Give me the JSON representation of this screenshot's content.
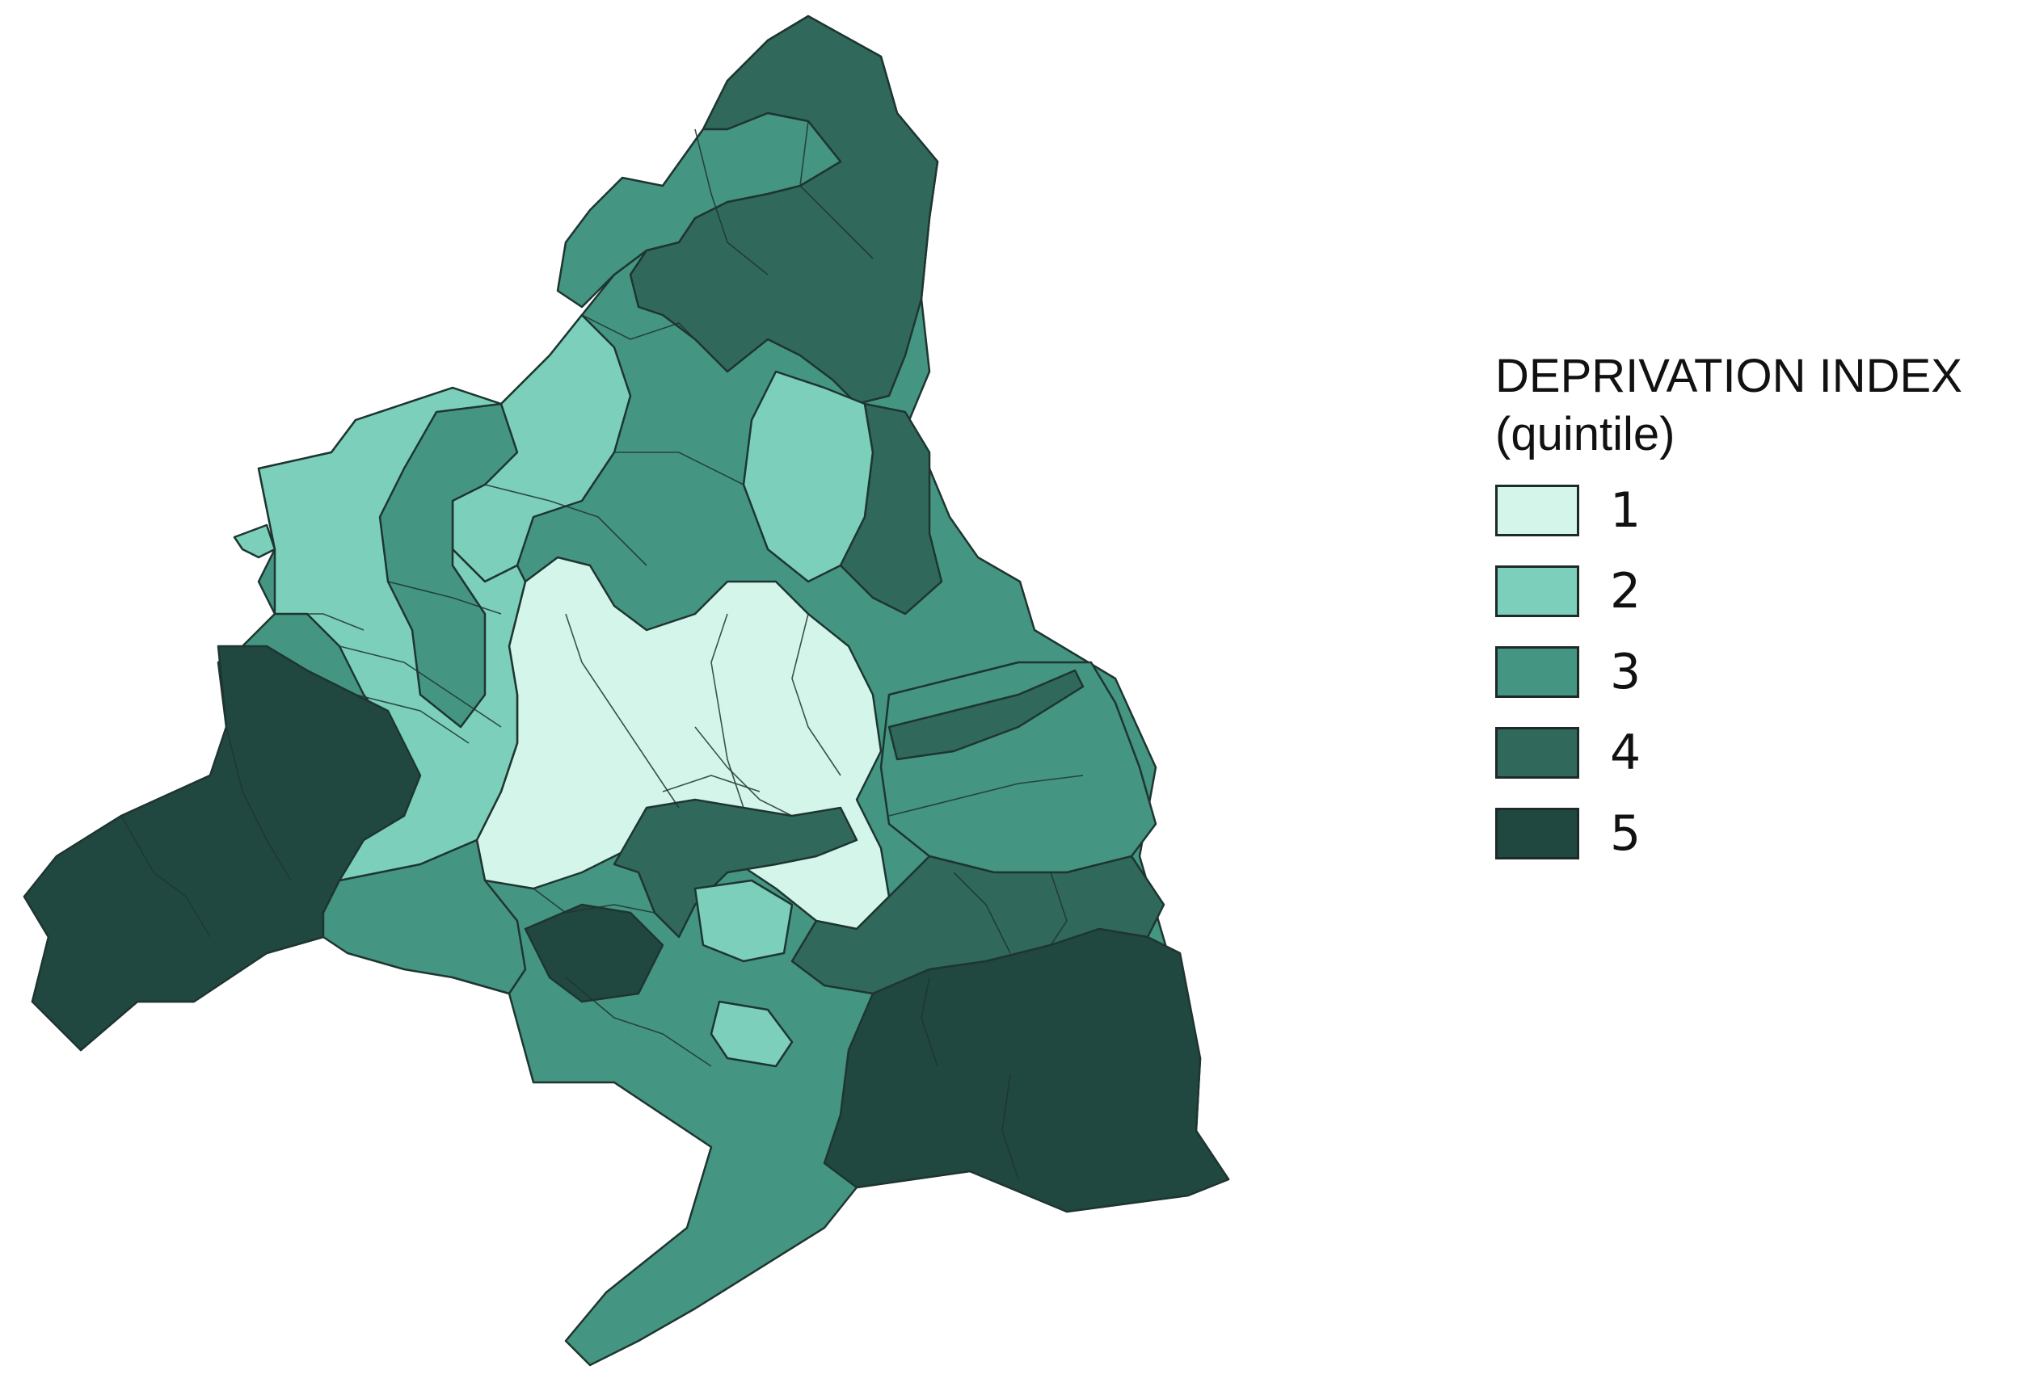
{
  "legend": {
    "title": "DEPRIVATION INDEX",
    "subtitle": "(quintile)",
    "items": [
      {
        "label": "1",
        "color": "#d4f5ea"
      },
      {
        "label": "2",
        "color": "#7ccfba"
      },
      {
        "label": "3",
        "color": "#459583"
      },
      {
        "label": "4",
        "color": "#30695c"
      },
      {
        "label": "5",
        "color": "#214840"
      }
    ]
  }
}
